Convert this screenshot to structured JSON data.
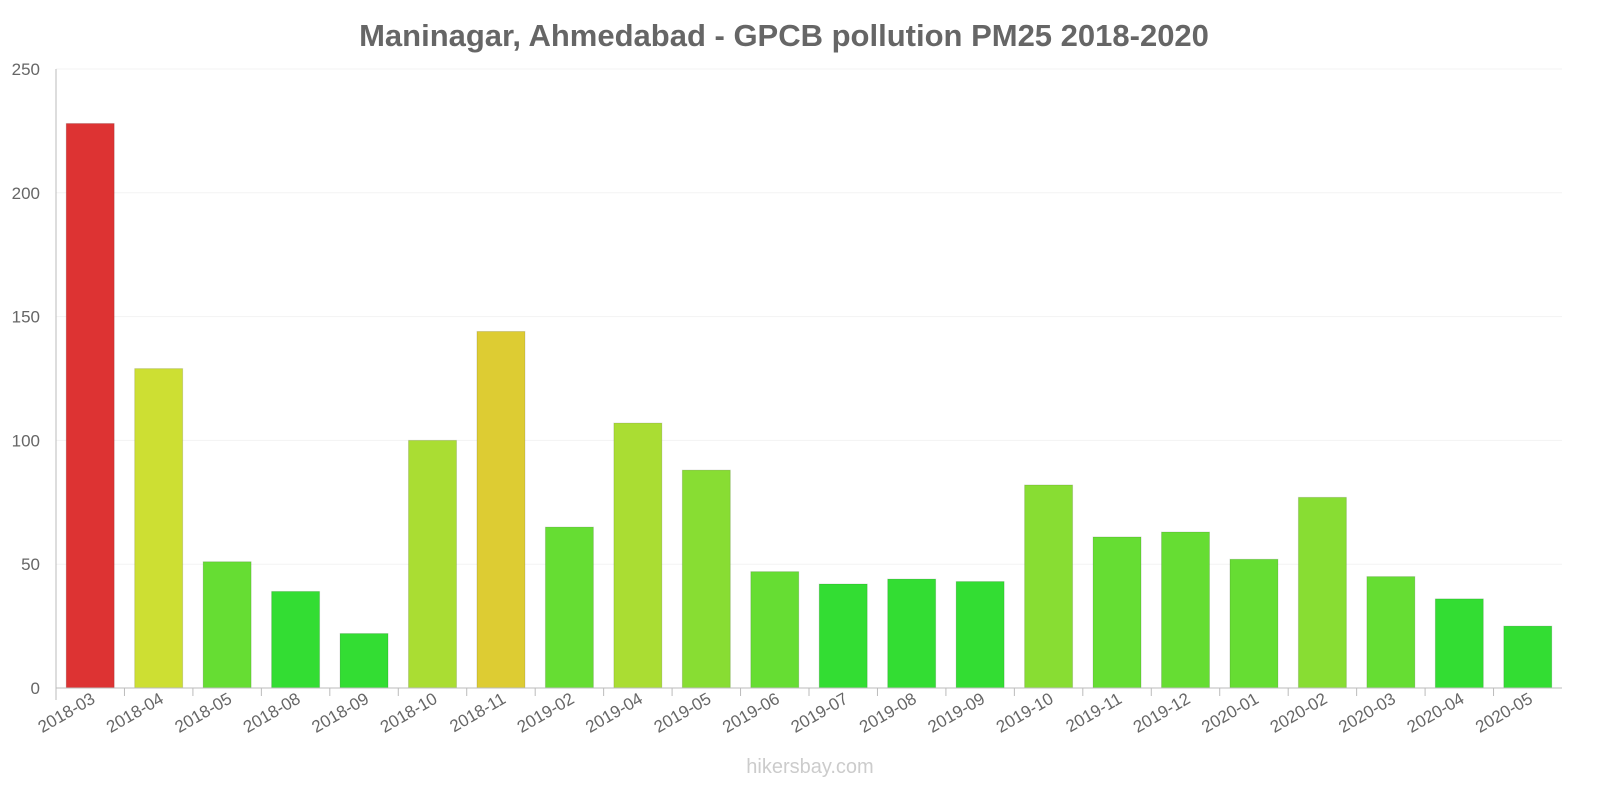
{
  "chart_data": {
    "type": "bar",
    "title": "Maninagar, Ahmedabad - GPCB pollution PM25 2018-2020",
    "xlabel": "",
    "ylabel": "",
    "ylim": [
      0,
      250
    ],
    "yticks": [
      0,
      50,
      100,
      150,
      200,
      250
    ],
    "grid": true,
    "categories": [
      "2018-03",
      "2018-04",
      "2018-05",
      "2018-08",
      "2018-09",
      "2018-10",
      "2018-11",
      "2019-02",
      "2019-04",
      "2019-05",
      "2019-06",
      "2019-07",
      "2019-08",
      "2019-09",
      "2019-10",
      "2019-11",
      "2019-12",
      "2020-01",
      "2020-02",
      "2020-03",
      "2020-04",
      "2020-05"
    ],
    "values": [
      228,
      129,
      51,
      39,
      22,
      100,
      144,
      65,
      107,
      88,
      47,
      42,
      44,
      43,
      82,
      61,
      63,
      52,
      77,
      45,
      36,
      25
    ],
    "colors": [
      "#dd3333",
      "#cddf33",
      "#66dd33",
      "#33dd33",
      "#33dd33",
      "#aadd33",
      "#ddcc33",
      "#66dd33",
      "#aadd33",
      "#88dd33",
      "#66dd33",
      "#33dd33",
      "#33dd33",
      "#33dd33",
      "#88dd33",
      "#66dd33",
      "#66dd33",
      "#66dd33",
      "#88dd33",
      "#66dd33",
      "#33dd33",
      "#33dd33"
    ]
  },
  "watermark": "hikersbay.com"
}
